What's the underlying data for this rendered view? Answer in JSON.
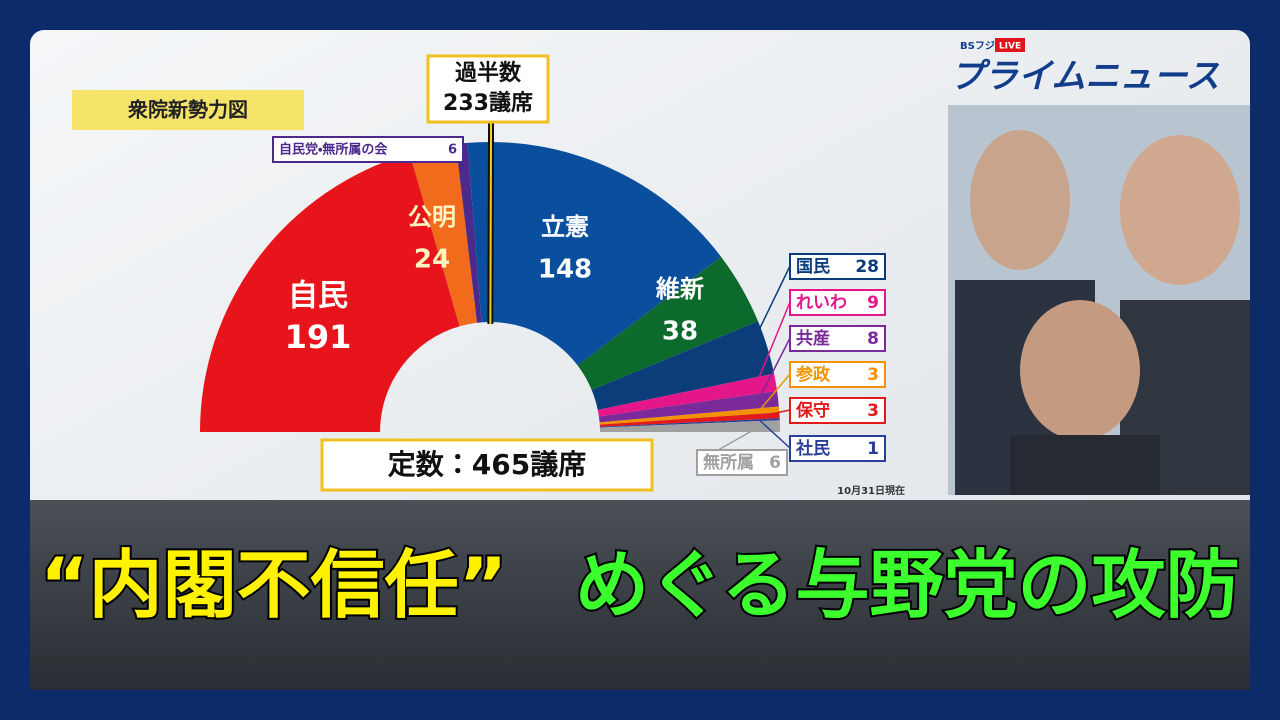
{
  "chart_data": {
    "type": "pie",
    "title": "衆院新勢力図",
    "categories": [
      "自民",
      "公明",
      "自民党・無所属の会",
      "立憲",
      "維新",
      "国民",
      "れいわ",
      "共産",
      "参政",
      "保守",
      "社民",
      "無所属"
    ],
    "values": [
      191,
      24,
      6,
      148,
      38,
      28,
      9,
      8,
      3,
      3,
      1,
      6
    ],
    "colors": [
      "#e8141b",
      "#f26b1d",
      "#4b2a8c",
      "#0a4f9e",
      "#0b6a2c",
      "#0b3d7a",
      "#e5158a",
      "#7b2a9a",
      "#f39200",
      "#e21a1a",
      "#2a3f9a",
      "#a0a0a0"
    ],
    "majority_title": "過半数",
    "majority": {
      "value": 233,
      "label": "233議席"
    },
    "total": {
      "value": 465,
      "label": "定数：465議席"
    },
    "date_note": "10月31日現在"
  },
  "broadcast": {
    "channel": "BSフジ",
    "live": "LIVE",
    "program": "プライムニュース"
  },
  "headline": {
    "quoted": "“内閣不信任”",
    "rest": "めぐる与野党の攻防"
  }
}
